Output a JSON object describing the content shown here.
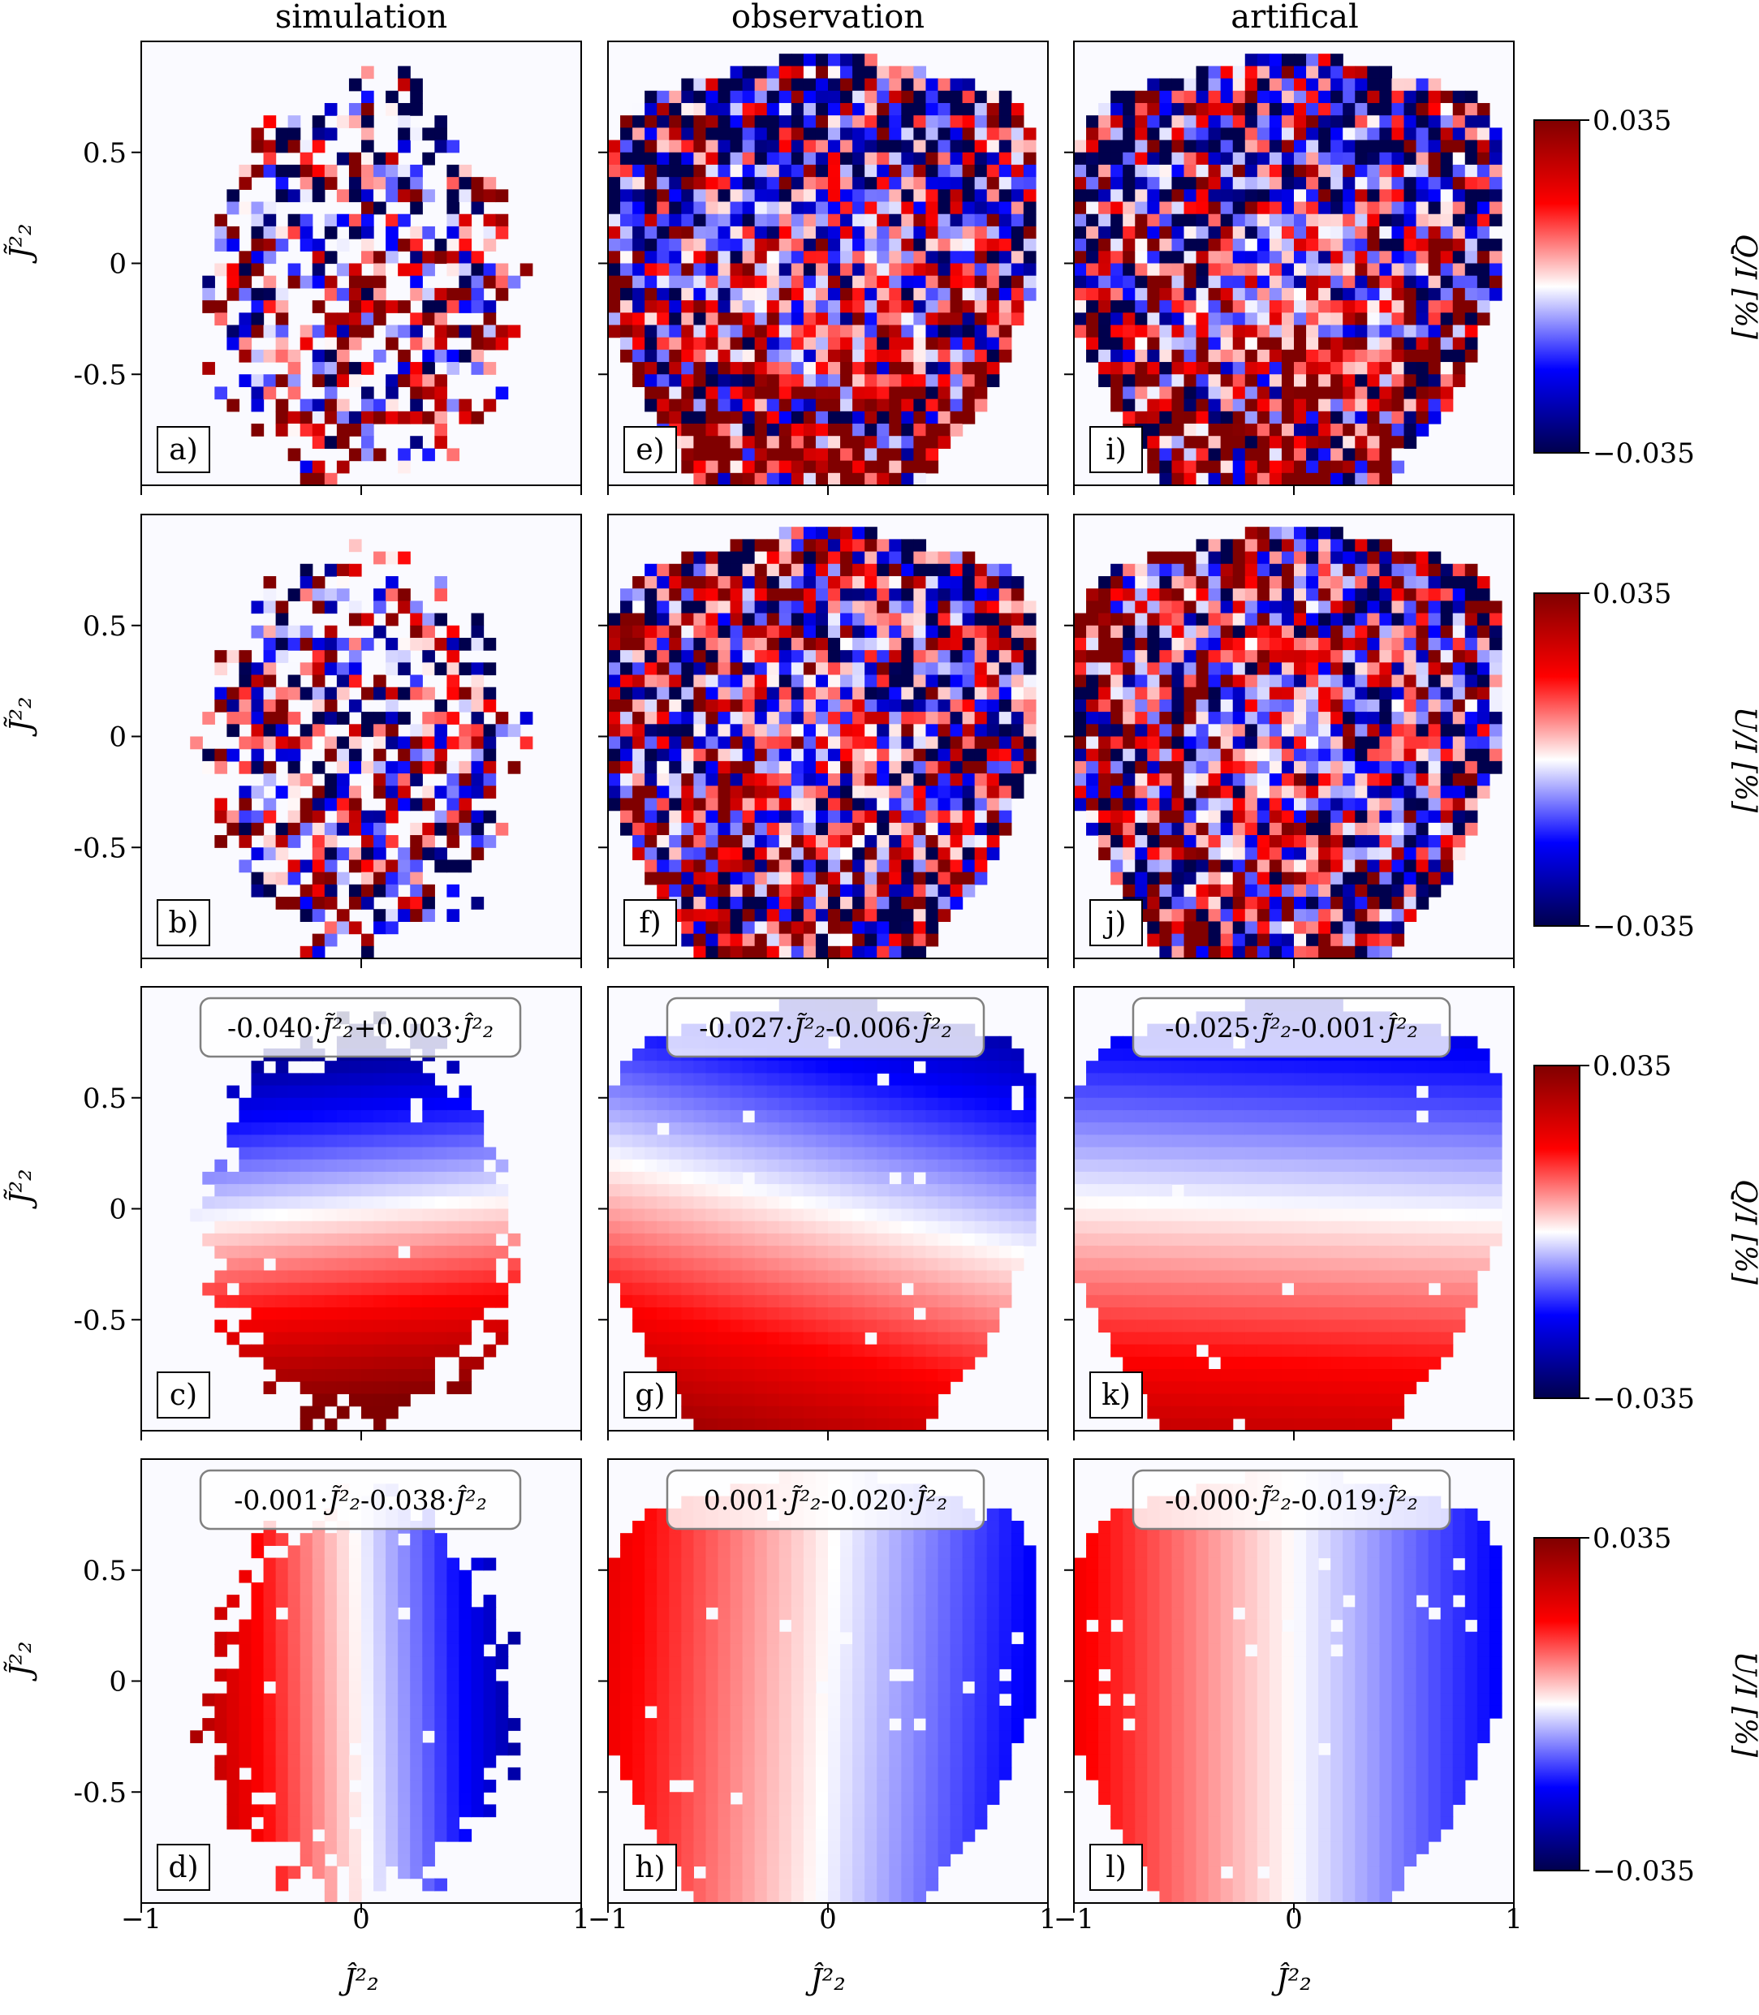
{
  "chart_data": {
    "type": "heatmap",
    "column_titles": [
      "simulation",
      "observation",
      "artifical"
    ],
    "xlabel": "Ĵ²₂",
    "ylabel": "J̃²₂",
    "xlim": [
      -1,
      1
    ],
    "ylim": [
      -1,
      1
    ],
    "x_ticks": [
      -1,
      0,
      1
    ],
    "x_tick_labels": [
      "−1",
      "0",
      "1"
    ],
    "y_ticks": [
      0.5,
      0,
      -0.5
    ],
    "y_tick_labels": [
      "0.5",
      "0",
      "-0.5"
    ],
    "color_limits": [
      -0.035,
      0.035
    ],
    "colormap": "seismic",
    "rows": [
      {
        "colorbar_label": "Q/I [%]",
        "colorbar_ticks": [
          "0.035",
          "−0.035"
        ],
        "panels": [
          {
            "label": "a)",
            "kind": "noise",
            "column": "simulation"
          },
          {
            "label": "e)",
            "kind": "noise",
            "column": "observation"
          },
          {
            "label": "i)",
            "kind": "noise",
            "column": "artifical"
          }
        ]
      },
      {
        "colorbar_label": "U/I [%]",
        "colorbar_ticks": [
          "0.035",
          "−0.035"
        ],
        "panels": [
          {
            "label": "b)",
            "kind": "noise",
            "column": "simulation"
          },
          {
            "label": "f)",
            "kind": "noise",
            "column": "observation"
          },
          {
            "label": "j)",
            "kind": "noise",
            "column": "artifical"
          }
        ]
      },
      {
        "colorbar_label": "Q/I [%]",
        "colorbar_ticks": [
          "0.035",
          "−0.035"
        ],
        "panels": [
          {
            "label": "c)",
            "kind": "fit",
            "column": "simulation",
            "coef_j": -0.04,
            "coef_jhat": 0.003,
            "formula": {
              "a": "-0.040",
              "b": "+0.003"
            }
          },
          {
            "label": "g)",
            "kind": "fit",
            "column": "observation",
            "coef_j": -0.027,
            "coef_jhat": -0.006,
            "formula": {
              "a": "-0.027",
              "b": "-0.006"
            }
          },
          {
            "label": "k)",
            "kind": "fit",
            "column": "artifical",
            "coef_j": -0.025,
            "coef_jhat": -0.001,
            "formula": {
              "a": "-0.025",
              "b": "-0.001"
            }
          }
        ]
      },
      {
        "colorbar_label": "U/I [%]",
        "colorbar_ticks": [
          "0.035",
          "−0.035"
        ],
        "panels": [
          {
            "label": "d)",
            "kind": "fit",
            "column": "simulation",
            "coef_j": -0.001,
            "coef_jhat": -0.038,
            "formula": {
              "a": "-0.001",
              "b": "-0.038"
            }
          },
          {
            "label": "h)",
            "kind": "fit",
            "column": "observation",
            "coef_j": 0.001,
            "coef_jhat": -0.02,
            "formula": {
              "a": "0.001",
              "b": "-0.020"
            }
          },
          {
            "label": "l)",
            "kind": "fit",
            "column": "artifical",
            "coef_j": -0.0,
            "coef_jhat": -0.019,
            "formula": {
              "a": "-0.000",
              "b": "-0.019"
            }
          }
        ]
      }
    ]
  }
}
